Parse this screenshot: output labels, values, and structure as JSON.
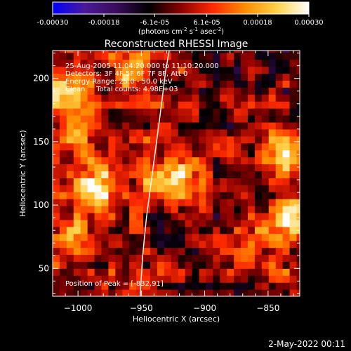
{
  "chart_data": {
    "type": "heatmap",
    "title": "Reconstructed RHESSI Image",
    "xlabel": "Heliocentric X (arcsec)",
    "ylabel": "Heliocentric Y (arcsec)",
    "xlim": [
      -1020,
      -825
    ],
    "ylim": [
      28,
      222
    ],
    "x_ticks": [
      -1000,
      -950,
      -900,
      -850
    ],
    "x_tick_labels": [
      "−1000",
      "−950",
      "−900",
      "−850"
    ],
    "y_ticks": [
      50,
      100,
      150,
      200
    ],
    "y_tick_labels": [
      "50",
      "100",
      "150",
      "200"
    ],
    "colorbar": {
      "range": [
        -0.0003,
        0.0003
      ],
      "ticks": [
        -0.0003,
        -0.00018,
        -6.1e-05,
        6.1e-05,
        0.00018,
        0.0003
      ],
      "tick_labels": [
        "-0.00030",
        "-0.00018",
        "-6.1e-05",
        "6.1e-05",
        "0.00018",
        "0.00030"
      ],
      "units_label": "(photons cm",
      "units_sup1": "-2",
      "units_mid": " s",
      "units_sup2": "-1",
      "units_end": " asec",
      "units_sup3": "-2",
      "units_close": ")"
    },
    "annotations": [
      "25-Aug-2005 11:04:20.000 to 11:10:20.000",
      "Detectors: 3F 4F 5F 6F 7F 8F, Att 0",
      "Energy Range: 25.0 - 50.0 keV",
      "Clean     Total counts: 4.98E+03"
    ],
    "peak_label": "Position of Peak = [-832,91]",
    "peak": [
      -832,
      91
    ],
    "limb": {
      "x": [
        -951,
        -949,
        -946,
        -942,
        -938,
        -934,
        -931,
        -928
      ],
      "y": [
        28,
        60,
        90,
        120,
        150,
        180,
        205,
        222
      ]
    },
    "bright_sources": [
      {
        "x": -985,
        "y": 115,
        "value": 0.00028
      },
      {
        "x": -1008,
        "y": 190,
        "value": 0.00022
      },
      {
        "x": -955,
        "y": 205,
        "value": 0.00021
      },
      {
        "x": -996,
        "y": 160,
        "value": 0.00016
      },
      {
        "x": -1000,
        "y": 75,
        "value": 0.00015
      },
      {
        "x": -930,
        "y": 120,
        "value": 0.00029
      },
      {
        "x": -912,
        "y": 122,
        "value": 0.00012
      },
      {
        "x": -832,
        "y": 91,
        "value": 0.0003
      },
      {
        "x": -836,
        "y": 140,
        "value": 0.00024
      },
      {
        "x": -860,
        "y": 75,
        "value": 0.00013
      },
      {
        "x": -840,
        "y": 45,
        "value": 0.0001
      }
    ],
    "colorscale": [
      "#0000ff",
      "#4a1a9a",
      "#3a0c5a",
      "#000000",
      "#8a0000",
      "#ff2a00",
      "#ff8c00",
      "#ffd24a",
      "#ffffff"
    ]
  },
  "footer": {
    "timestamp": "2-May-2022 00:11"
  }
}
